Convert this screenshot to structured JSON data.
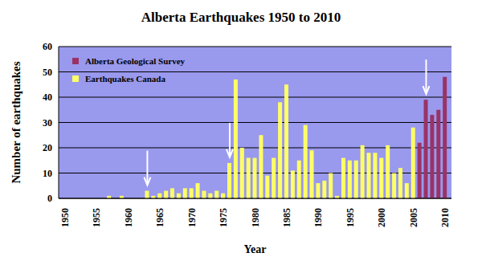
{
  "chart_data": {
    "type": "bar",
    "title": "Alberta Earthquakes 1950 to 2010",
    "x_label": "Year",
    "y_label": "Number of earthquakes",
    "x": [
      1950,
      1951,
      1952,
      1953,
      1954,
      1955,
      1956,
      1957,
      1958,
      1959,
      1960,
      1961,
      1962,
      1963,
      1964,
      1965,
      1966,
      1967,
      1968,
      1969,
      1970,
      1971,
      1972,
      1973,
      1974,
      1975,
      1976,
      1977,
      1978,
      1979,
      1980,
      1981,
      1982,
      1983,
      1984,
      1985,
      1986,
      1987,
      1988,
      1989,
      1990,
      1991,
      1992,
      1993,
      1994,
      1995,
      1996,
      1997,
      1998,
      1999,
      2000,
      2001,
      2002,
      2003,
      2004,
      2005,
      2006,
      2007,
      2008,
      2009,
      2010
    ],
    "series": [
      {
        "name": "Alberta Geological Survey",
        "color": "#993366",
        "values": [
          null,
          null,
          null,
          null,
          null,
          null,
          null,
          null,
          null,
          null,
          null,
          null,
          null,
          null,
          null,
          null,
          null,
          null,
          null,
          null,
          null,
          null,
          null,
          null,
          null,
          null,
          null,
          null,
          null,
          null,
          null,
          null,
          null,
          null,
          null,
          null,
          null,
          null,
          null,
          null,
          null,
          null,
          null,
          null,
          null,
          null,
          null,
          null,
          null,
          null,
          null,
          null,
          null,
          null,
          null,
          null,
          22,
          39,
          33,
          35,
          48
        ]
      },
      {
        "name": "Earthquakes Canada",
        "color": "#ffff66",
        "values": [
          null,
          null,
          null,
          null,
          null,
          null,
          null,
          1,
          null,
          1,
          null,
          null,
          null,
          3,
          1,
          2,
          3,
          4,
          2,
          4,
          4,
          6,
          3,
          2,
          3,
          2,
          14,
          47,
          20,
          16,
          16,
          25,
          9,
          16,
          38,
          45,
          11,
          15,
          29,
          19,
          6,
          7,
          10,
          1,
          16,
          15,
          15,
          21,
          18,
          18,
          16,
          21,
          10,
          12,
          6,
          28,
          null,
          null,
          null,
          null,
          null
        ]
      }
    ],
    "arrows": [
      1963,
      1976,
      2007
    ],
    "xlim": [
      1949,
      2011
    ],
    "xticks": [
      1950,
      1955,
      1960,
      1965,
      1970,
      1975,
      1980,
      1985,
      1990,
      1995,
      2000,
      2005,
      2010
    ],
    "ylim": [
      0,
      60
    ],
    "yticks": [
      0,
      10,
      20,
      30,
      40,
      50,
      60
    ],
    "grid": true,
    "legend": "upper left",
    "stacked": true
  }
}
